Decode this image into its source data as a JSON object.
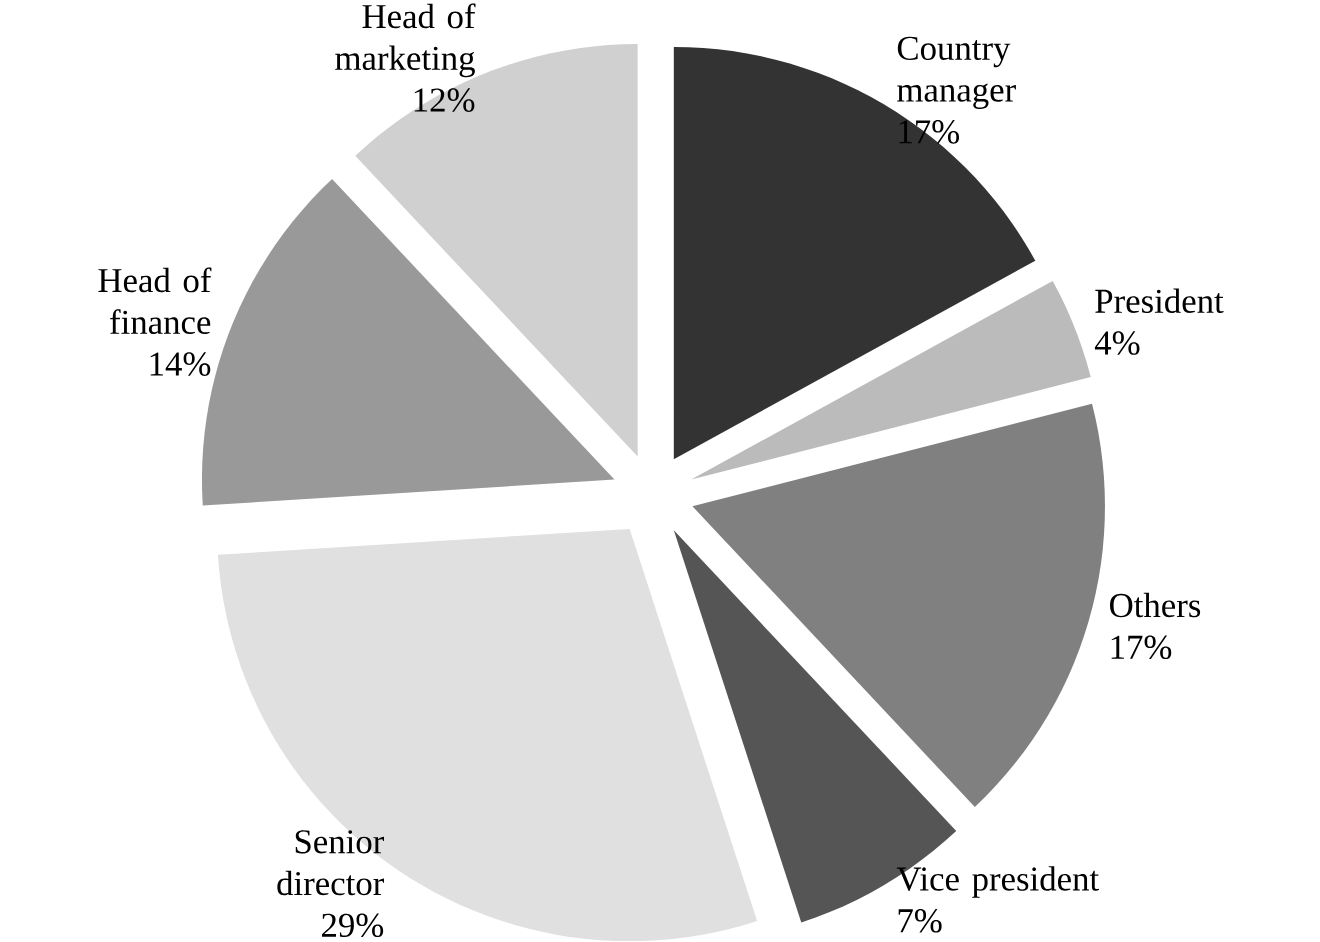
{
  "chart_data": {
    "type": "pie",
    "categories": [
      "Country manager",
      "President",
      "Others",
      "Vice president",
      "Senior director",
      "Head of finance",
      "Head of marketing"
    ],
    "values": [
      17,
      4,
      17,
      7,
      29,
      14,
      12
    ],
    "value_labels": [
      "17%",
      "4%",
      "17%",
      "7%",
      "29%",
      "14%",
      "12%"
    ],
    "colors": [
      "#333333",
      "#bbbbbb",
      "#808080",
      "#555555",
      "#e0e0e0",
      "#999999",
      "#d0d0d0"
    ]
  }
}
